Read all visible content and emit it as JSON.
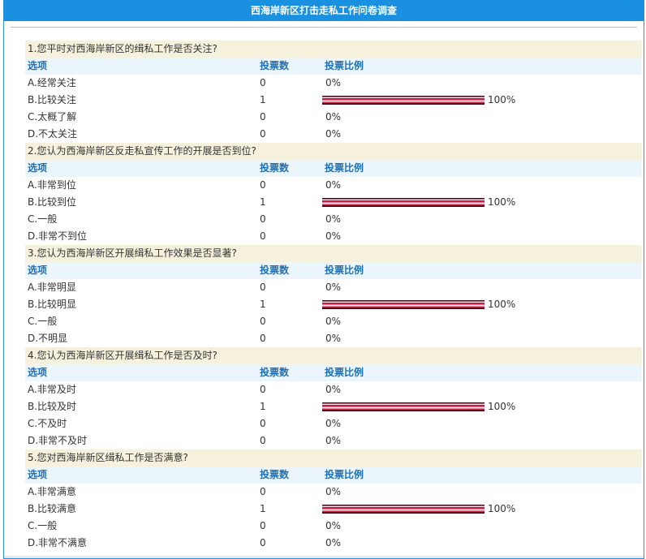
{
  "title": "西海岸新区打击走私工作问卷调查",
  "header": {
    "option": "选项",
    "votes": "投票数",
    "ratio": "投票比例"
  },
  "questions": [
    {
      "text": "1.您平时对西海岸新区的缉私工作是否关注?",
      "options": [
        {
          "label": "A.经常关注",
          "votes": "0",
          "percent": "0%",
          "fraction": 0
        },
        {
          "label": "B.比较关注",
          "votes": "1",
          "percent": "100%",
          "fraction": 1
        },
        {
          "label": "C.太概了解",
          "votes": "0",
          "percent": "0%",
          "fraction": 0
        },
        {
          "label": "D.不太关注",
          "votes": "0",
          "percent": "0%",
          "fraction": 0
        }
      ]
    },
    {
      "text": "2.您认为西海岸新区反走私宣传工作的开展是否到位?",
      "options": [
        {
          "label": "A.非常到位",
          "votes": "0",
          "percent": "0%",
          "fraction": 0
        },
        {
          "label": "B.比较到位",
          "votes": "1",
          "percent": "100%",
          "fraction": 1
        },
        {
          "label": "C.一般",
          "votes": "0",
          "percent": "0%",
          "fraction": 0
        },
        {
          "label": "D.非常不到位",
          "votes": "0",
          "percent": "0%",
          "fraction": 0
        }
      ]
    },
    {
      "text": "3.您认为西海岸新区开展缉私工作效果是否显著?",
      "options": [
        {
          "label": "A.非常明显",
          "votes": "0",
          "percent": "0%",
          "fraction": 0
        },
        {
          "label": "B.比较明显",
          "votes": "1",
          "percent": "100%",
          "fraction": 1
        },
        {
          "label": "C.一般",
          "votes": "0",
          "percent": "0%",
          "fraction": 0
        },
        {
          "label": "D.不明显",
          "votes": "0",
          "percent": "0%",
          "fraction": 0
        }
      ]
    },
    {
      "text": "4.您认为西海岸新区开展缉私工作是否及时?",
      "options": [
        {
          "label": "A.非常及时",
          "votes": "0",
          "percent": "0%",
          "fraction": 0
        },
        {
          "label": "B.比较及时",
          "votes": "1",
          "percent": "100%",
          "fraction": 1
        },
        {
          "label": "C.不及时",
          "votes": "0",
          "percent": "0%",
          "fraction": 0
        },
        {
          "label": "D.非常不及时",
          "votes": "0",
          "percent": "0%",
          "fraction": 0
        }
      ]
    },
    {
      "text": "5.您对西海岸新区缉私工作是否满意?",
      "options": [
        {
          "label": "A.非常满意",
          "votes": "0",
          "percent": "0%",
          "fraction": 0
        },
        {
          "label": "B.比较满意",
          "votes": "1",
          "percent": "100%",
          "fraction": 1
        },
        {
          "label": "C.一般",
          "votes": "0",
          "percent": "0%",
          "fraction": 0
        },
        {
          "label": "D.非常不满意",
          "votes": "0",
          "percent": "0%",
          "fraction": 0
        }
      ]
    }
  ]
}
